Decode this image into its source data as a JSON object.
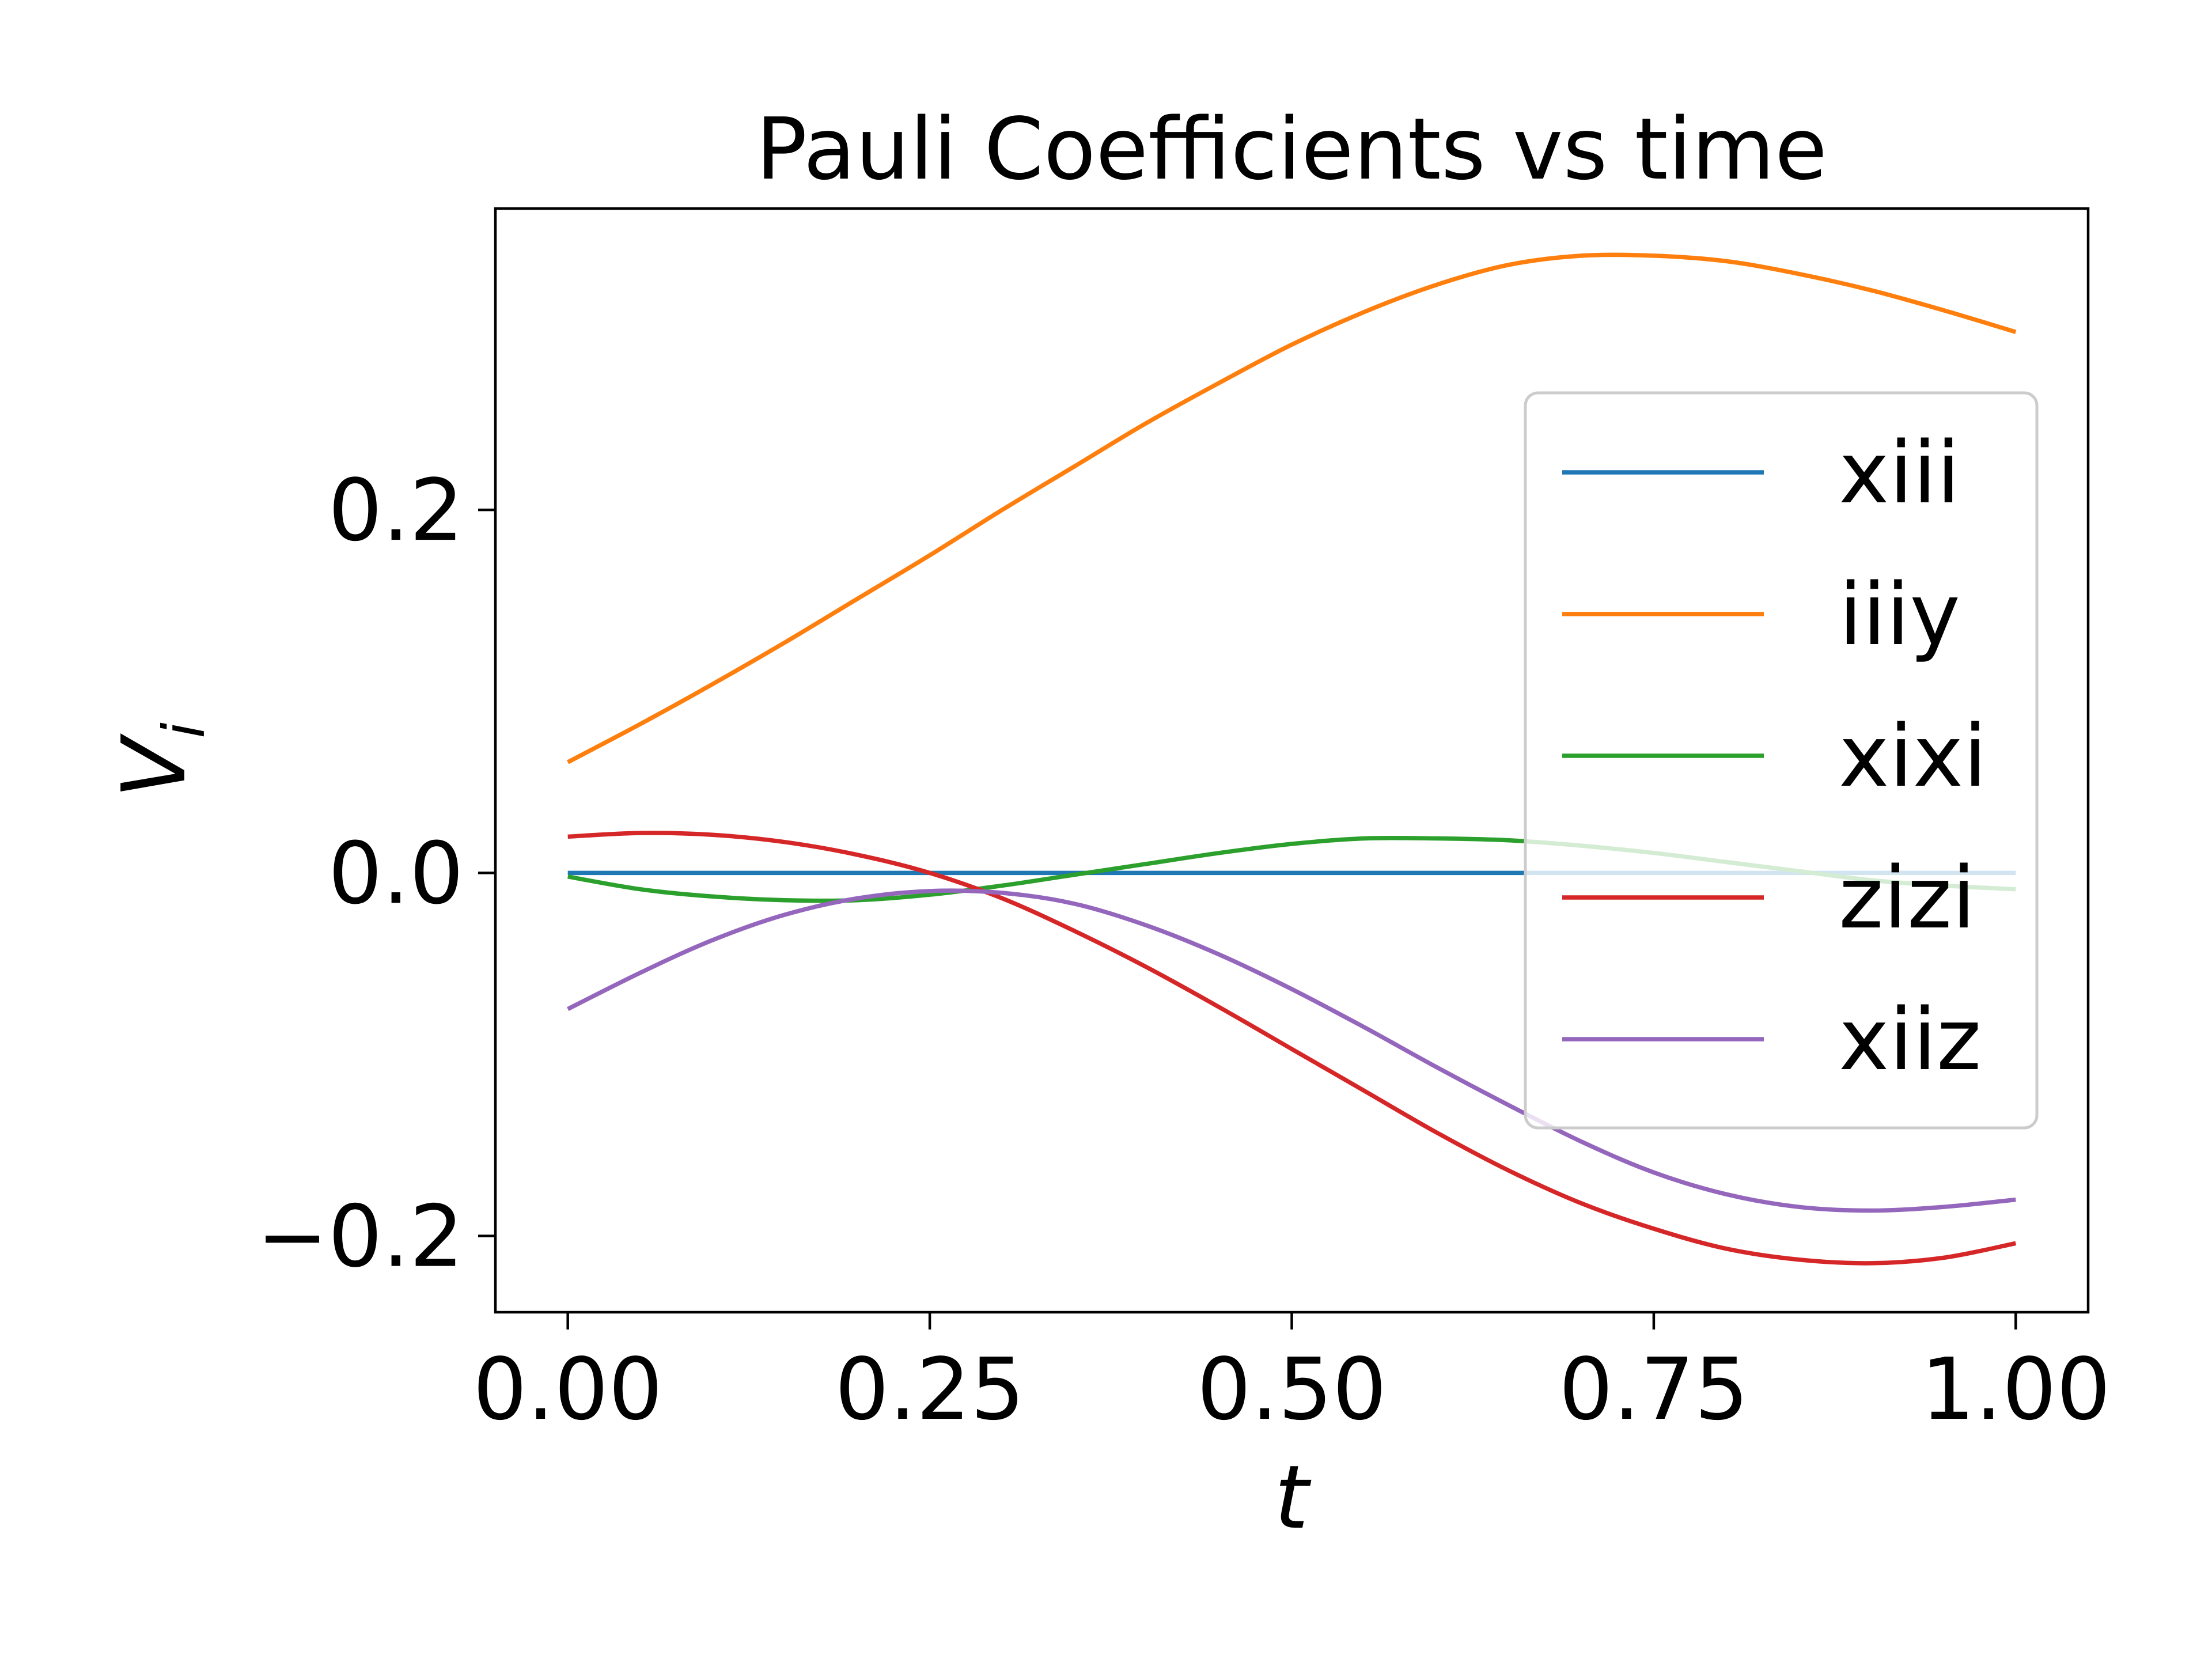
{
  "chart_data": {
    "type": "line",
    "title": "Pauli Coefficients vs time",
    "xlabel": "t",
    "ylabel_main": "V",
    "ylabel_sub": "i",
    "xlim": [
      -0.05,
      1.05
    ],
    "ylim": [
      -0.242,
      0.366
    ],
    "x_ticks": [
      0.0,
      0.25,
      0.5,
      0.75,
      1.0
    ],
    "x_tick_labels": [
      "0.00",
      "0.25",
      "0.50",
      "0.75",
      "1.00"
    ],
    "y_ticks": [
      -0.2,
      0.0,
      0.2
    ],
    "y_tick_labels": [
      "−0.2",
      "0.0",
      "0.2"
    ],
    "grid": false,
    "legend_position": "right",
    "x": [
      0.0,
      0.05,
      0.1,
      0.15,
      0.2,
      0.25,
      0.3,
      0.35,
      0.4,
      0.45,
      0.5,
      0.55,
      0.6,
      0.65,
      0.7,
      0.75,
      0.8,
      0.85,
      0.9,
      0.95,
      1.0
    ],
    "series": [
      {
        "name": "xiii",
        "color": "#1f77b4",
        "values": [
          0.0,
          0.0,
          0.0,
          0.0,
          0.0,
          0.0,
          0.0,
          0.0,
          0.0,
          0.0,
          0.0,
          0.0,
          0.0,
          0.0,
          0.0,
          0.0,
          0.0,
          0.0,
          0.0,
          0.0,
          0.0
        ]
      },
      {
        "name": "iiiy",
        "color": "#ff7f0e",
        "values": [
          0.061,
          0.082,
          0.104,
          0.127,
          0.151,
          0.175,
          0.2,
          0.224,
          0.248,
          0.27,
          0.291,
          0.309,
          0.324,
          0.335,
          0.34,
          0.34,
          0.337,
          0.33,
          0.321,
          0.31,
          0.298
        ]
      },
      {
        "name": "xixi",
        "color": "#2ca02c",
        "values": [
          -0.002,
          -0.009,
          -0.013,
          -0.015,
          -0.015,
          -0.012,
          -0.007,
          -0.001,
          0.005,
          0.011,
          0.016,
          0.019,
          0.019,
          0.018,
          0.015,
          0.011,
          0.006,
          0.001,
          -0.004,
          -0.007,
          -0.009
        ]
      },
      {
        "name": "zizi",
        "color": "#d62728",
        "values": [
          0.02,
          0.022,
          0.021,
          0.017,
          0.01,
          0.0,
          -0.014,
          -0.032,
          -0.052,
          -0.074,
          -0.097,
          -0.12,
          -0.143,
          -0.164,
          -0.182,
          -0.196,
          -0.207,
          -0.213,
          -0.215,
          -0.212,
          -0.204
        ]
      },
      {
        "name": "xiiz",
        "color": "#9467bd",
        "values": [
          -0.075,
          -0.055,
          -0.037,
          -0.023,
          -0.014,
          -0.01,
          -0.011,
          -0.017,
          -0.029,
          -0.045,
          -0.064,
          -0.085,
          -0.107,
          -0.128,
          -0.148,
          -0.165,
          -0.177,
          -0.184,
          -0.186,
          -0.184,
          -0.18
        ]
      }
    ]
  }
}
